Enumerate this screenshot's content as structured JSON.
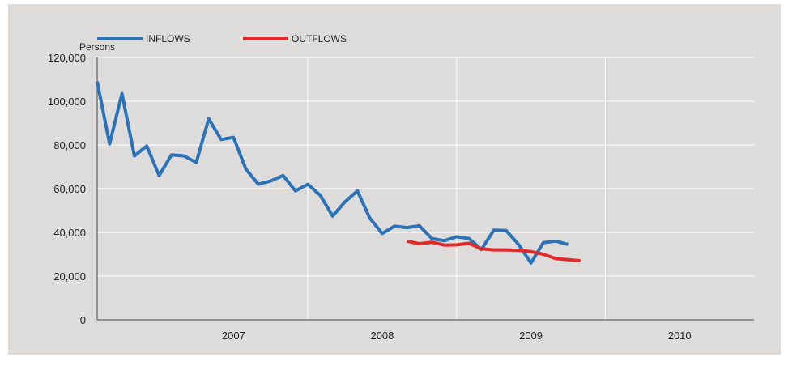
{
  "chart_data": {
    "type": "line",
    "ylabel": "Persons",
    "ylim": [
      0,
      120000
    ],
    "yticks": [
      0,
      20000,
      40000,
      60000,
      80000,
      100000,
      120000
    ],
    "ytick_labels": [
      "0",
      "20,000",
      "40,000",
      "60,000",
      "80,000",
      "100,000",
      "120,000"
    ],
    "x_range": [
      "2006-08",
      "2010-12"
    ],
    "year_labels": [
      "2007",
      "2008",
      "2009",
      "2010"
    ],
    "grid": true,
    "legend_position": "top-left",
    "series": [
      {
        "name": "INFLOWS",
        "color": "#2a72b9",
        "x": [
          "2006-08",
          "2006-09",
          "2006-10",
          "2006-11",
          "2006-12",
          "2007-01",
          "2007-02",
          "2007-03",
          "2007-04",
          "2007-05",
          "2007-06",
          "2007-07",
          "2007-08",
          "2007-09",
          "2007-10",
          "2007-11",
          "2007-12",
          "2008-01",
          "2008-02",
          "2008-03",
          "2008-04",
          "2008-05",
          "2008-06",
          "2008-07",
          "2008-08",
          "2008-09",
          "2008-10",
          "2008-11",
          "2008-12",
          "2009-01",
          "2009-02",
          "2009-03",
          "2009-04",
          "2009-05",
          "2009-06",
          "2009-07",
          "2009-08",
          "2009-09",
          "2009-10",
          "2009-11",
          "2009-12",
          "2010-01",
          "2010-02"
        ],
        "values": [
          109000,
          80500,
          103500,
          75000,
          79500,
          66000,
          75500,
          75000,
          72000,
          92000,
          82500,
          83500,
          69000,
          62000,
          63500,
          66000,
          59000,
          62000,
          57000,
          47500,
          54000,
          59000,
          46500,
          39500,
          42800,
          42200,
          43000,
          37200,
          36200,
          38000,
          37200,
          32200,
          41000,
          40800,
          34500,
          26000,
          35300,
          36000,
          34500,
          null,
          null,
          null,
          null
        ]
      },
      {
        "name": "OUTFLOWS",
        "color": "#e32a2a",
        "x": [
          "2008-09",
          "2008-10",
          "2008-11",
          "2008-12",
          "2009-01",
          "2009-02",
          "2009-03",
          "2009-04",
          "2009-05",
          "2009-06",
          "2009-07",
          "2009-08",
          "2009-09",
          "2009-10",
          "2009-11",
          "2009-12",
          "2010-01",
          "2010-02"
        ],
        "values": [
          36000,
          34800,
          35500,
          34200,
          34300,
          35000,
          32500,
          32000,
          32000,
          31800,
          31200,
          30000,
          28000,
          27500,
          27000,
          null,
          null,
          null
        ]
      }
    ]
  }
}
